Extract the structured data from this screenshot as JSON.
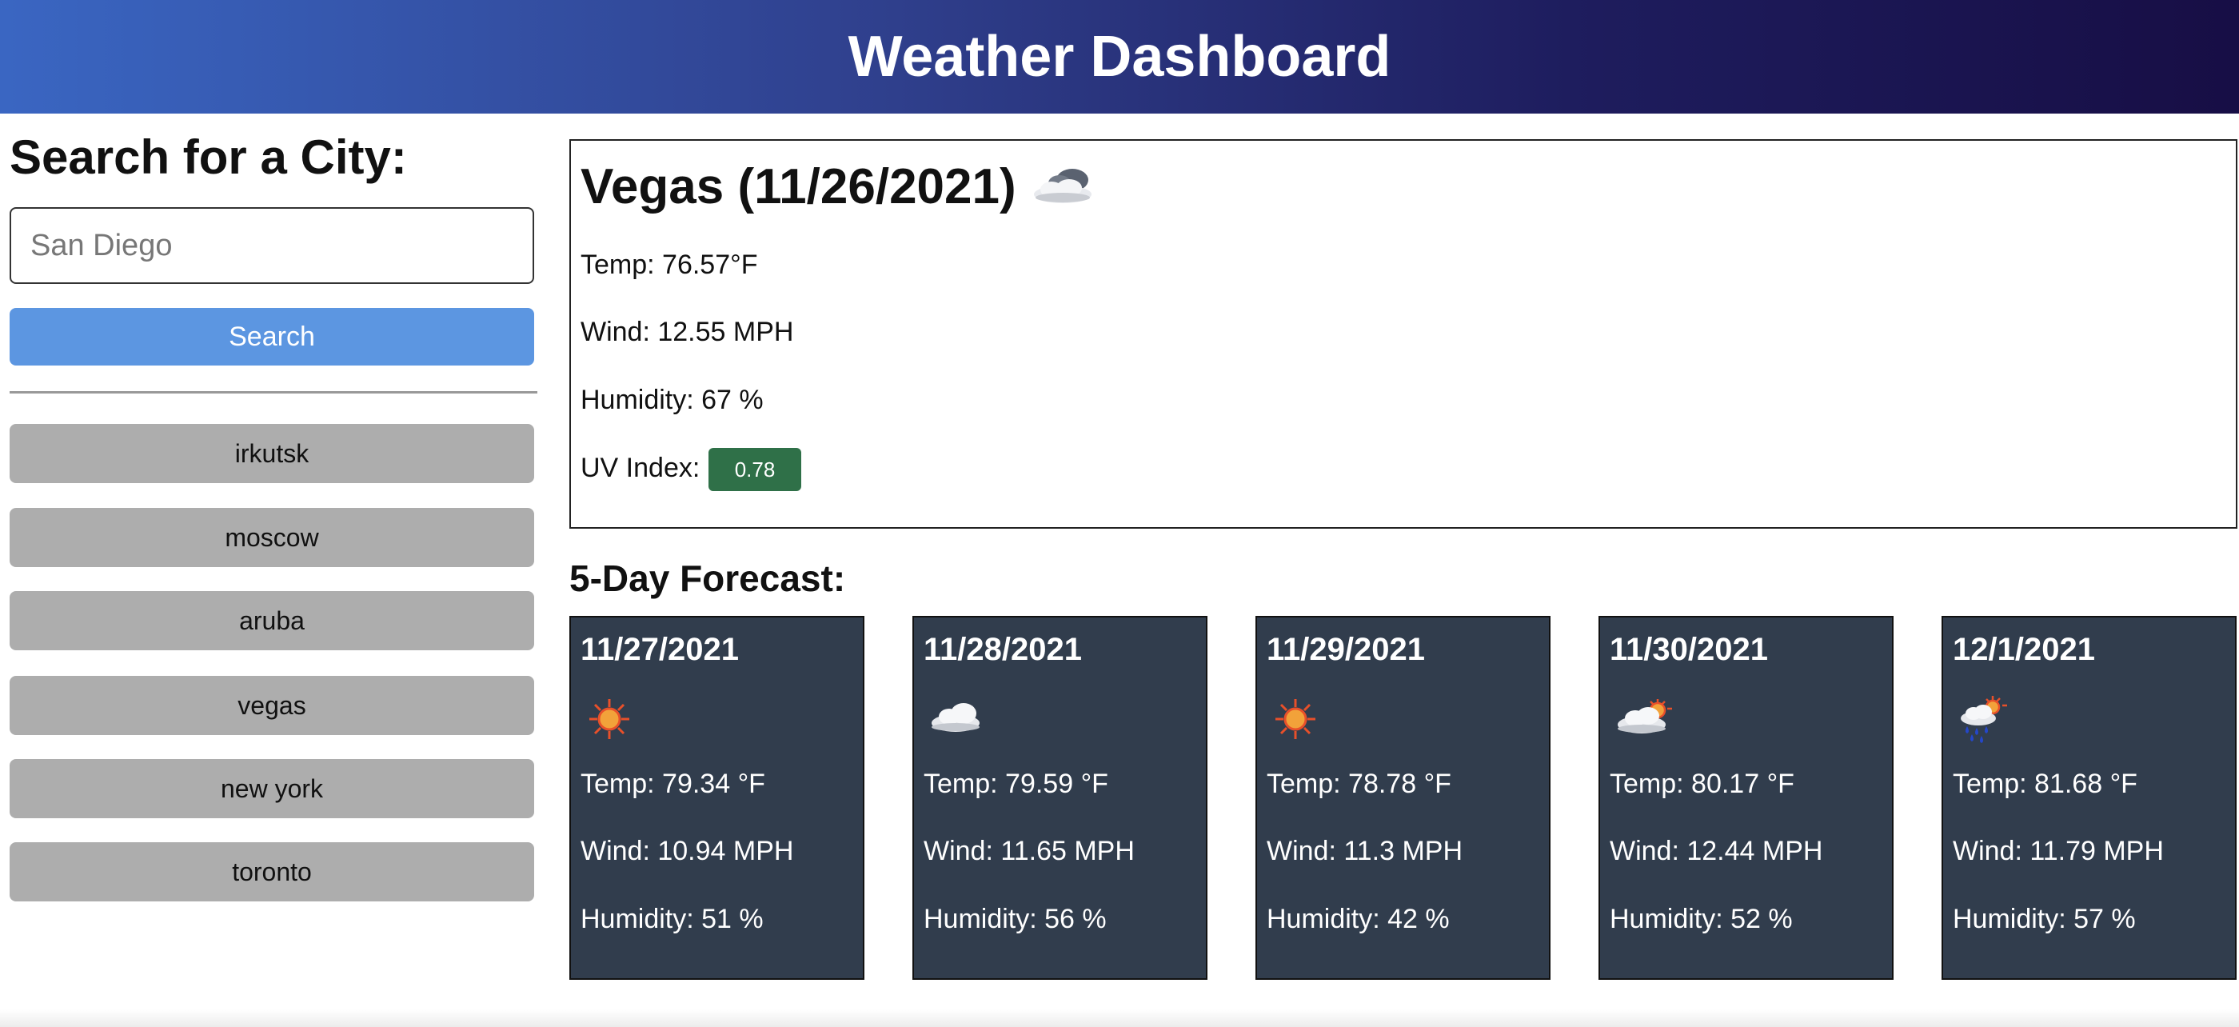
{
  "header": {
    "title": "Weather Dashboard"
  },
  "sidebar": {
    "heading": "Search for a City:",
    "search_placeholder": "San Diego",
    "search_button": "Search",
    "history": [
      "irkutsk",
      "moscow",
      "aruba",
      "vegas",
      "new york",
      "toronto"
    ]
  },
  "current": {
    "title": "Vegas (11/26/2021)",
    "icon": "cloudy-icon",
    "temp": "Temp: 76.57°F",
    "wind": "Wind: 12.55 MPH",
    "humidity": "Humidity: 67 %",
    "uv_label": "UV Index:",
    "uv_value": "0.78",
    "uv_color": "#2f7048"
  },
  "forecast": {
    "title": "5-Day Forecast:",
    "card_color": "#313d4d",
    "days": [
      {
        "date": "11/27/2021",
        "icon": "sun-icon",
        "temp": "Temp: 79.34 °F",
        "wind": "Wind: 10.94 MPH",
        "humidity": "Humidity: 51 %"
      },
      {
        "date": "11/28/2021",
        "icon": "cloud-icon",
        "temp": "Temp: 79.59 °F",
        "wind": "Wind: 11.65 MPH",
        "humidity": "Humidity: 56 %"
      },
      {
        "date": "11/29/2021",
        "icon": "sun-icon",
        "temp": "Temp: 78.78 °F",
        "wind": "Wind: 11.3 MPH",
        "humidity": "Humidity: 42 %"
      },
      {
        "date": "11/30/2021",
        "icon": "partly-cloudy-icon",
        "temp": "Temp: 80.17 °F",
        "wind": "Wind: 12.44 MPH",
        "humidity": "Humidity: 52 %"
      },
      {
        "date": "12/1/2021",
        "icon": "rain-sun-icon",
        "temp": "Temp: 81.68 °F",
        "wind": "Wind: 11.79 MPH",
        "humidity": "Humidity: 57 %"
      }
    ]
  }
}
